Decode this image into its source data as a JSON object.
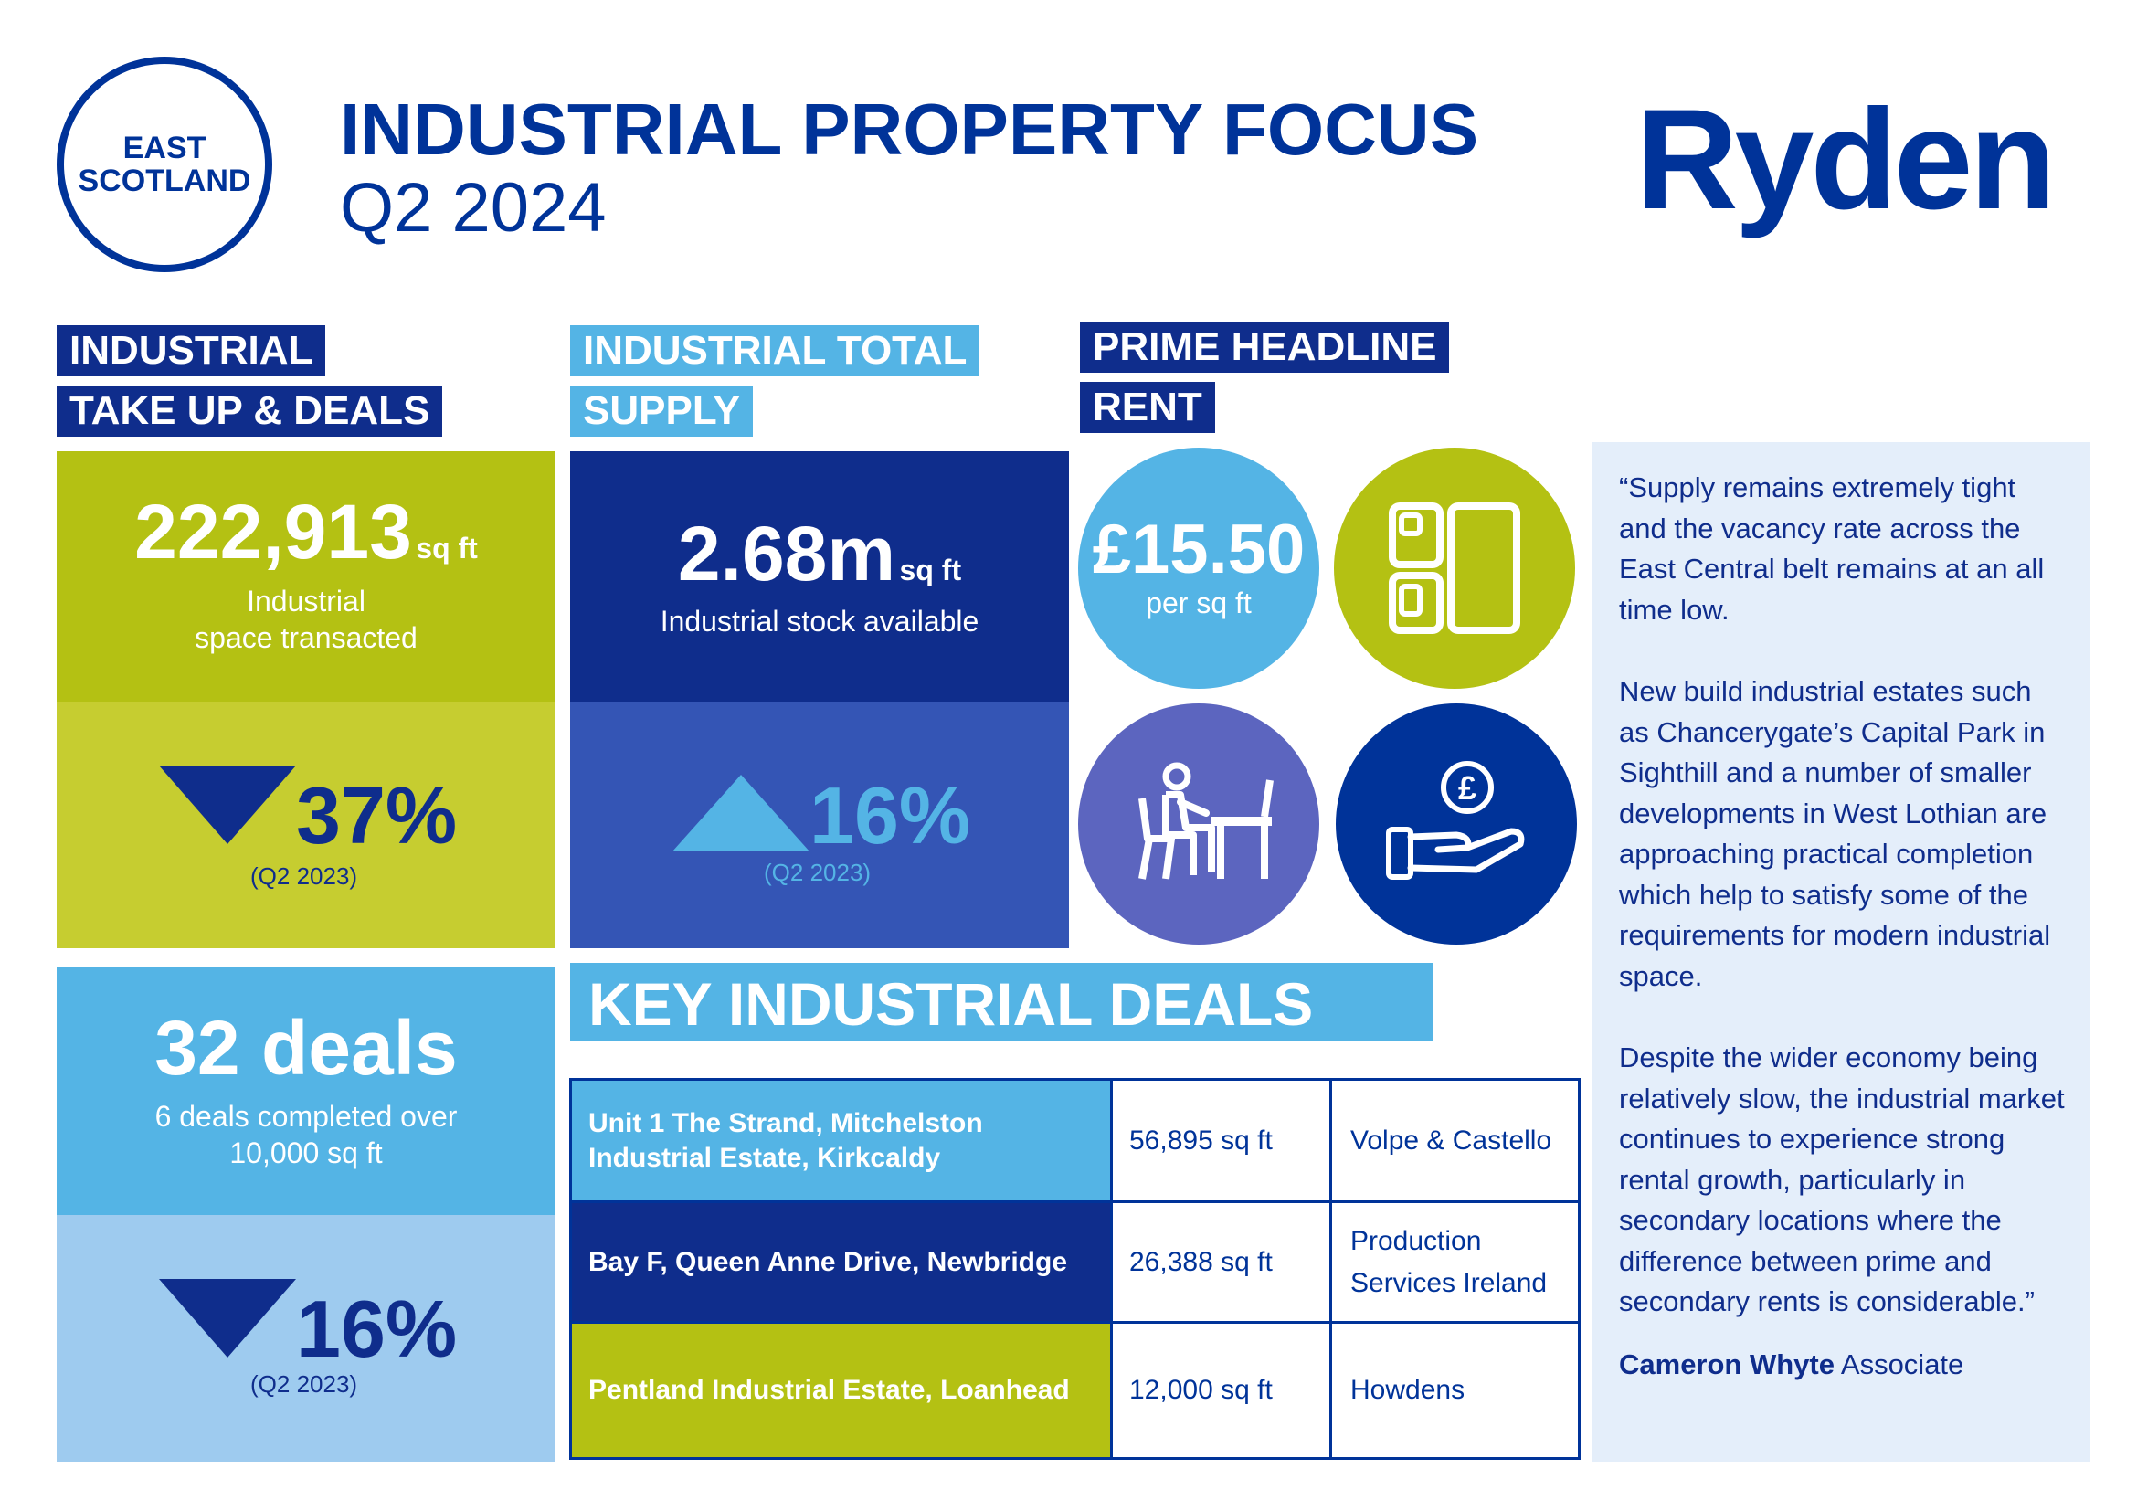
{
  "header": {
    "region_line1": "EAST",
    "region_line2": "SCOTLAND",
    "title": "INDUSTRIAL PROPERTY FOCUS",
    "period": "Q2 2024",
    "logo_text": "Ryden"
  },
  "takeup": {
    "tag_line1": "INDUSTRIAL",
    "tag_line2": "TAKE UP & DEALS",
    "value": "222,913",
    "unit": "sq ft",
    "label_line1": "Industrial",
    "label_line2": "space transacted",
    "change": "37%",
    "change_direction": "down",
    "comparison": "(Q2 2023)"
  },
  "deals": {
    "value": "32 deals",
    "label_line1": "6 deals completed over",
    "label_line2": "10,000 sq ft",
    "change": "16%",
    "change_direction": "down",
    "comparison": "(Q2 2023)"
  },
  "supply": {
    "tag_line1": "INDUSTRIAL TOTAL",
    "tag_line2": "SUPPLY",
    "value": "2.68m",
    "unit": "sq ft",
    "label": "Industrial stock available",
    "change": "16%",
    "change_direction": "up",
    "comparison": "(Q2 2023)"
  },
  "rent": {
    "tag_line1": "PRIME HEADLINE",
    "tag_line2": "RENT",
    "value": "£15.50",
    "label": "per sq ft",
    "icons": [
      "layout-icon",
      "desk-worker-icon",
      "pound-hand-icon"
    ]
  },
  "key_deals": {
    "heading": "KEY INDUSTRIAL DEALS",
    "rows": [
      {
        "address_line1": "Unit 1 The Strand, Mitchelston",
        "address_line2": "Industrial Estate, Kirkcaldy",
        "size": "56,895 sq ft",
        "tenant_line1": "Volpe & Castello",
        "tenant_line2": ""
      },
      {
        "address_line1": "Bay F, Queen Anne Drive, Newbridge",
        "address_line2": "",
        "size": "26,388 sq ft",
        "tenant_line1": "Production",
        "tenant_line2": "Services Ireland"
      },
      {
        "address_line1": "Pentland Industrial Estate, Loanhead",
        "address_line2": "",
        "size": "12,000 sq ft",
        "tenant_line1": "Howdens",
        "tenant_line2": ""
      }
    ]
  },
  "quote": {
    "p1": "“Supply remains extremely tight and the vacancy rate across the East Central belt remains at an all time low.",
    "p2": "New build industrial estates such as Chancerygate’s Capital Park in Sighthill and a number of smaller developments in West Lothian are approaching practical completion which help to satisfy some of the requirements for modern industrial space.",
    "p3": "Despite the wider economy being relatively slow, the industrial market continues to experience strong rental growth, particularly in secondary locations where the difference between prime and secondary rents is considerable.”",
    "author": "Cameron Whyte",
    "role": "Associate"
  },
  "colors": {
    "navy": "#0f2d8c",
    "royal": "#003399",
    "light_blue": "#54b4e5",
    "pale_blue": "#9ecbef",
    "olive": "#b4c113",
    "olive_light": "#c6cd30",
    "mid_blue": "#3455b5",
    "purple": "#5c65bf",
    "quote_bg": "#e4eefa"
  }
}
